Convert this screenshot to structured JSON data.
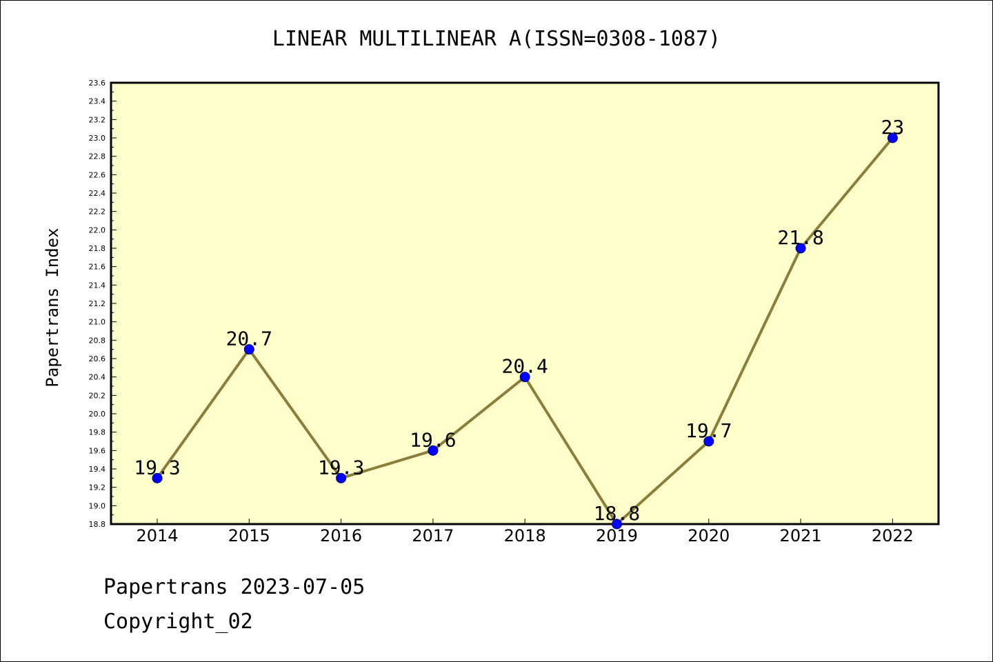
{
  "chart_data": {
    "type": "line",
    "title": "LINEAR MULTILINEAR A(ISSN=0308-1087)",
    "xlabel": "",
    "ylabel": "Papertrans Index",
    "categories": [
      "2014",
      "2015",
      "2016",
      "2017",
      "2018",
      "2019",
      "2020",
      "2021",
      "2022"
    ],
    "series": [
      {
        "values": [
          19.3,
          20.7,
          19.3,
          19.6,
          20.4,
          18.8,
          19.7,
          21.8,
          23.0
        ]
      }
    ],
    "data_labels": [
      "19.3",
      "20.7",
      "19.3",
      "19.6",
      "20.4",
      "18.8",
      "19.7",
      "21.8",
      "23"
    ],
    "ylim": [
      18.8,
      23.6
    ],
    "yticks": [
      "18.8",
      "19.0",
      "19.2",
      "19.4",
      "19.6",
      "19.8",
      "20.0",
      "20.2",
      "20.4",
      "20.6",
      "20.8",
      "21.0",
      "21.2",
      "21.4",
      "21.6",
      "21.8",
      "22.0",
      "22.2",
      "22.4",
      "22.6",
      "22.8",
      "23.0",
      "23.2",
      "23.4",
      "23.6"
    ],
    "grid": false,
    "colors": {
      "plot_background": "#ffffcc",
      "line": "#8b7d3a",
      "marker": "#0000ff"
    }
  },
  "footer": {
    "source": "Papertrans 2023-07-05",
    "copyright": "Copyright_02"
  }
}
